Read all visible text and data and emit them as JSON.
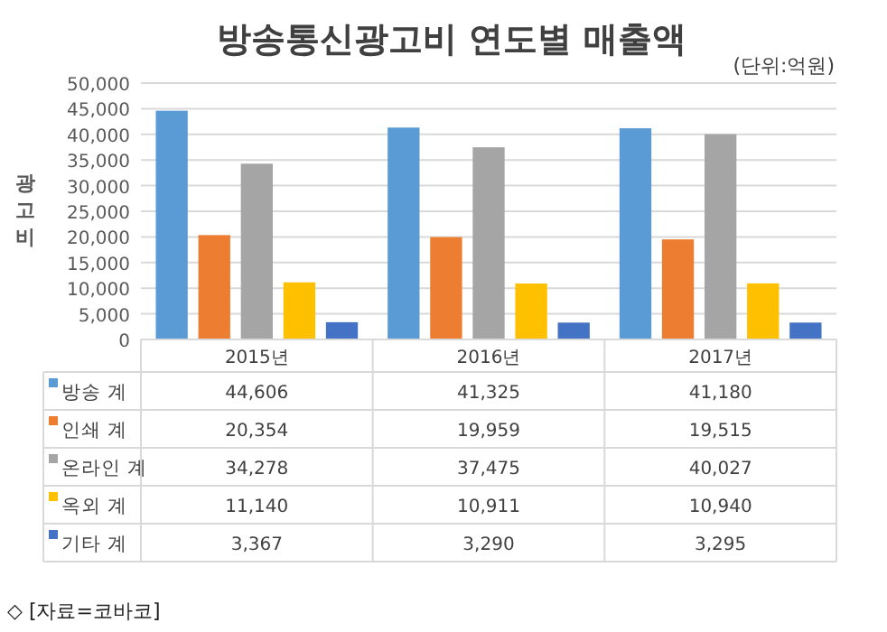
{
  "chart_data": {
    "type": "bar",
    "title": "방송통신광고비 연도별 매출액",
    "subtitle": "(단위:억원)",
    "ylabel": "광고비",
    "categories": [
      "2015년",
      "2016년",
      "2017년"
    ],
    "series": [
      {
        "name": "방송 계",
        "color": "#5b9bd5",
        "values": [
          44606,
          41325,
          41180
        ],
        "value_labels": [
          "44,606",
          "41,325",
          "41,180"
        ]
      },
      {
        "name": "인쇄 계",
        "color": "#ed7d31",
        "values": [
          20354,
          19959,
          19515
        ],
        "value_labels": [
          "20,354",
          "19,959",
          "19,515"
        ]
      },
      {
        "name": "온라인 계",
        "color": "#a5a5a5",
        "values": [
          34278,
          37475,
          40027
        ],
        "value_labels": [
          "34,278",
          "37,475",
          "40,027"
        ]
      },
      {
        "name": "옥외 계",
        "color": "#ffc000",
        "values": [
          11140,
          10911,
          10940
        ],
        "value_labels": [
          "11,140",
          "10,911",
          "10,940"
        ]
      },
      {
        "name": "기타 계",
        "color": "#4472c4",
        "values": [
          3367,
          3290,
          3295
        ],
        "value_labels": [
          "3,367",
          "3,290",
          "3,295"
        ]
      }
    ],
    "ylim": [
      0,
      50000
    ],
    "yticks": [
      0,
      {
        "value": 5000,
        "label": "5,000"
      },
      {
        "value": 10000,
        "label": "10,000"
      },
      {
        "value": 15000,
        "label": "15,000"
      },
      {
        "value": 20000,
        "label": "20,000"
      },
      {
        "value": 25000,
        "label": "25,000"
      },
      {
        "value": 30000,
        "label": "30,000"
      },
      {
        "value": 35000,
        "label": "35,000"
      },
      {
        "value": 40000,
        "label": "40,000"
      },
      {
        "value": 45000,
        "label": "45,000"
      },
      {
        "value": 50000,
        "label": "50,000"
      }
    ],
    "grid": "y",
    "legend": "bottom",
    "annotations": [
      "◇ [자료=코바코]"
    ]
  }
}
